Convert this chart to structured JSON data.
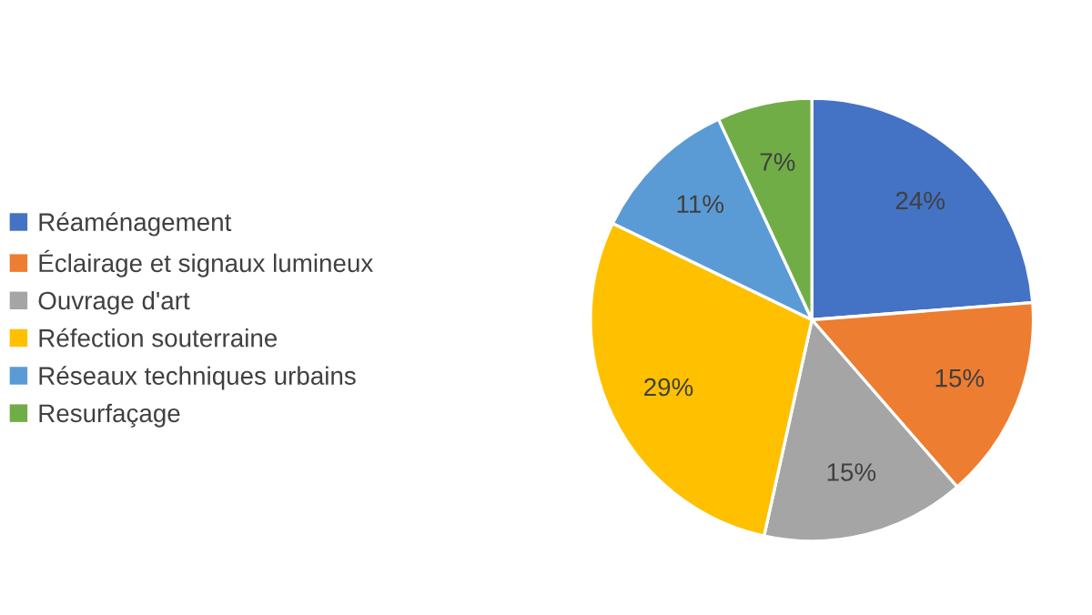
{
  "chart_data": {
    "type": "pie",
    "categories": [
      "Réaménagement",
      "Éclairage et signaux lumineux",
      "Ouvrage d'art",
      "Réfection souterraine",
      "Réseaux techniques urbains",
      "Resurfaçage"
    ],
    "values": [
      24,
      15,
      15,
      29,
      11,
      7
    ],
    "colors": [
      "#4472c4",
      "#ed7d31",
      "#a5a5a5",
      "#ffc000",
      "#5b9bd5",
      "#70ad47"
    ],
    "value_labels": [
      "24%",
      "15%",
      "15%",
      "29%",
      "11%",
      "7%"
    ],
    "legend": "left"
  }
}
